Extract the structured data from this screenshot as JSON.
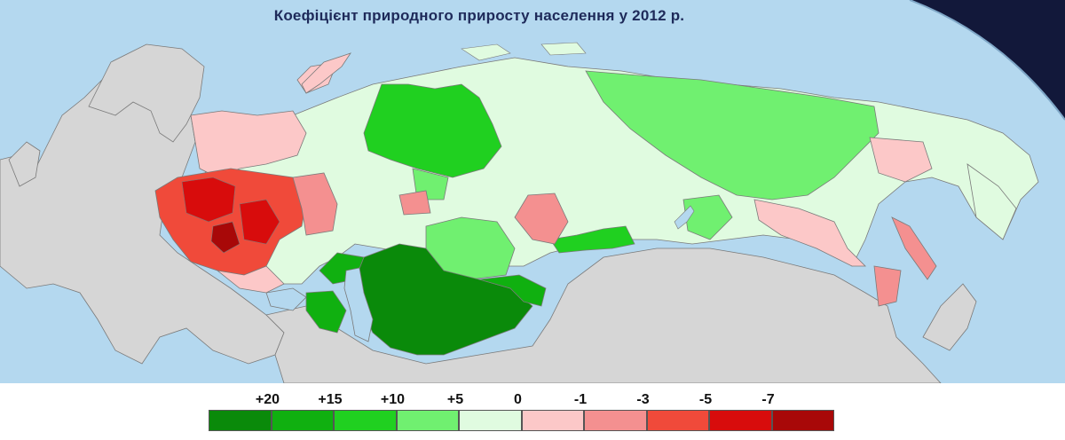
{
  "title": "Коефіцієнт природного приросту населення  у 2012 р.",
  "colors": {
    "sea": "#b4d8ef",
    "space": "#12183a",
    "other_land": "#d6d6d6",
    "border": "#7a7a7a"
  },
  "legend": {
    "tick_labels": [
      "+20",
      "+15",
      "+10",
      "+5",
      "0",
      "-1",
      "-3",
      "-5",
      "-7"
    ],
    "swatch_colors": [
      "#0a8a0a",
      "#10b010",
      "#20d020",
      "#70f070",
      "#e0fbe0",
      "#fcc8c8",
      "#f49090",
      "#f04a3a",
      "#d80c0c",
      "#a80808"
    ]
  }
}
